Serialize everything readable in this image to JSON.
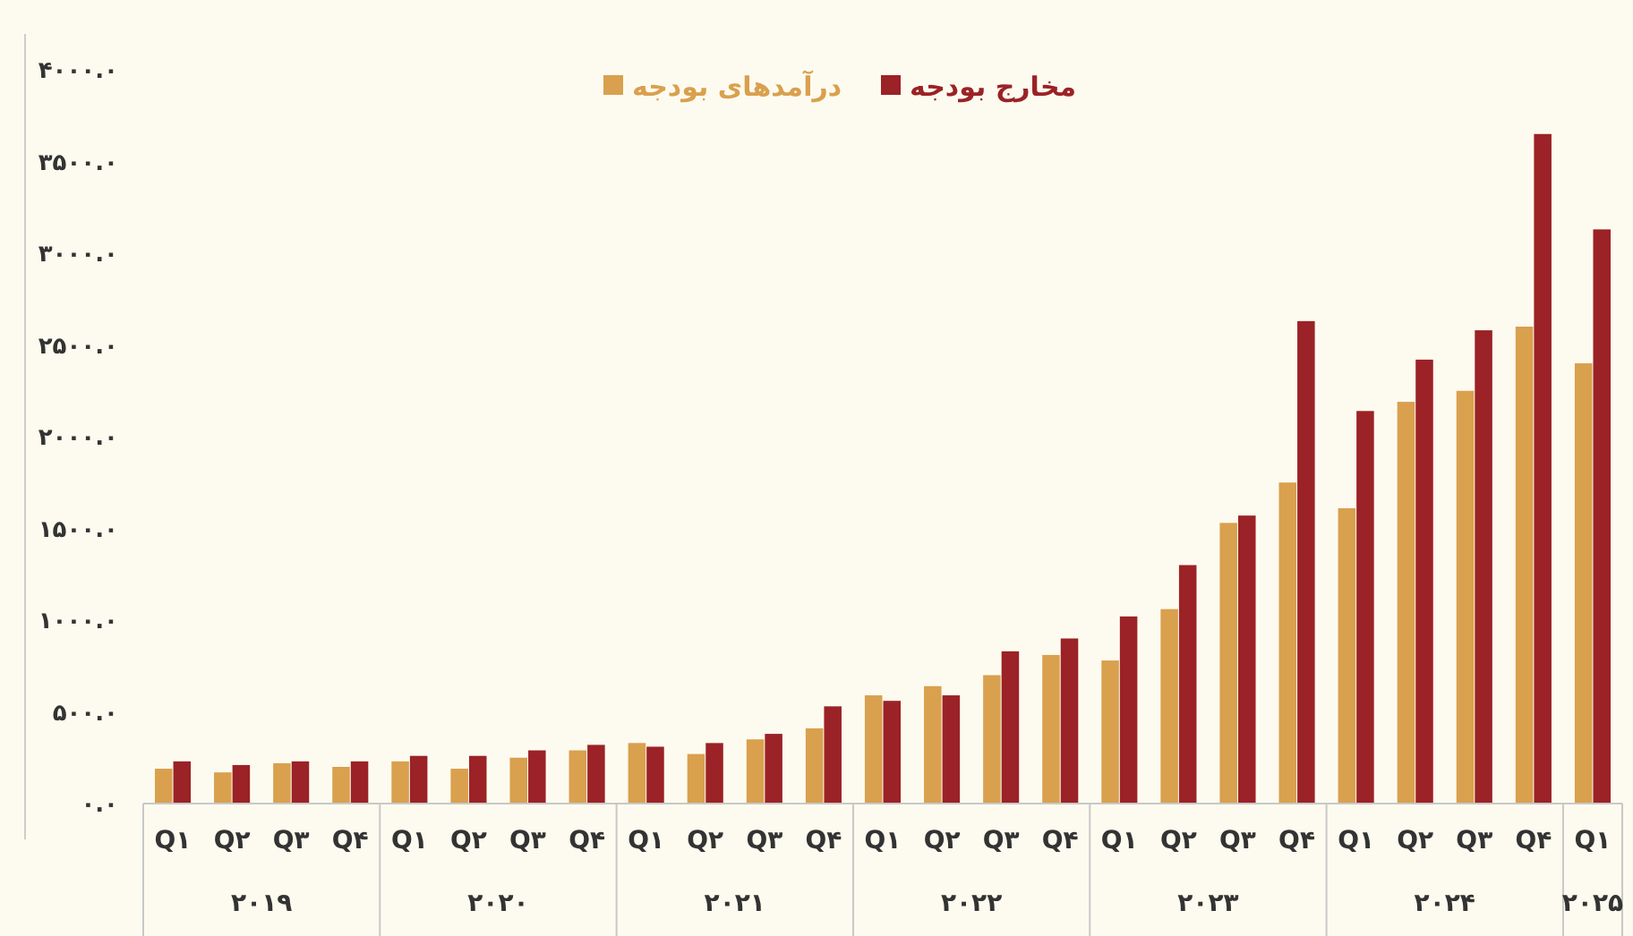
{
  "chart_data": {
    "type": "bar",
    "categories": [
      "Q۱",
      "Q۲",
      "Q۳",
      "Q۴",
      "Q۱",
      "Q۲",
      "Q۳",
      "Q۴",
      "Q۱",
      "Q۲",
      "Q۳",
      "Q۴",
      "Q۱",
      "Q۲",
      "Q۳",
      "Q۴",
      "Q۱",
      "Q۲",
      "Q۳",
      "Q۴",
      "Q۱",
      "Q۲",
      "Q۳",
      "Q۴",
      "Q۱"
    ],
    "series": [
      {
        "name": "درآمدهای بودجه",
        "color": "#d9a04e",
        "values": [
          190,
          170,
          220,
          200,
          230,
          190,
          250,
          290,
          330,
          270,
          350,
          410,
          590,
          640,
          700,
          810,
          780,
          1060,
          1530,
          1750,
          1610,
          2190,
          2250,
          2600,
          2400
        ]
      },
      {
        "name": "مخارج بودجه",
        "color": "#9b2226",
        "values": [
          230,
          210,
          230,
          230,
          260,
          260,
          290,
          320,
          310,
          330,
          380,
          530,
          560,
          590,
          830,
          900,
          1020,
          1300,
          1570,
          2630,
          2140,
          2420,
          2580,
          3650,
          3130
        ]
      }
    ],
    "ylim": [
      0,
      4000
    ],
    "yticks": [
      {
        "value": 0,
        "label": "۰.۰"
      },
      {
        "value": 500,
        "label": "۵۰۰.۰"
      },
      {
        "value": 1000,
        "label": "۱۰۰۰.۰"
      },
      {
        "value": 1500,
        "label": "۱۵۰۰.۰"
      },
      {
        "value": 2000,
        "label": "۲۰۰۰.۰"
      },
      {
        "value": 2500,
        "label": "۲۵۰۰.۰"
      },
      {
        "value": 3000,
        "label": "۳۰۰۰.۰"
      },
      {
        "value": 3500,
        "label": "۳۵۰۰.۰"
      },
      {
        "value": 4000,
        "label": "۴۰۰۰.۰"
      }
    ],
    "annotations": [
      "۲۰۱۹",
      "۲۰۲۰",
      "۲۰۲۱",
      "۲۰۲۲",
      "۲۰۲۳",
      "۲۰۲۴",
      "۲۰۲۵"
    ],
    "legend": "top",
    "grid": false
  }
}
